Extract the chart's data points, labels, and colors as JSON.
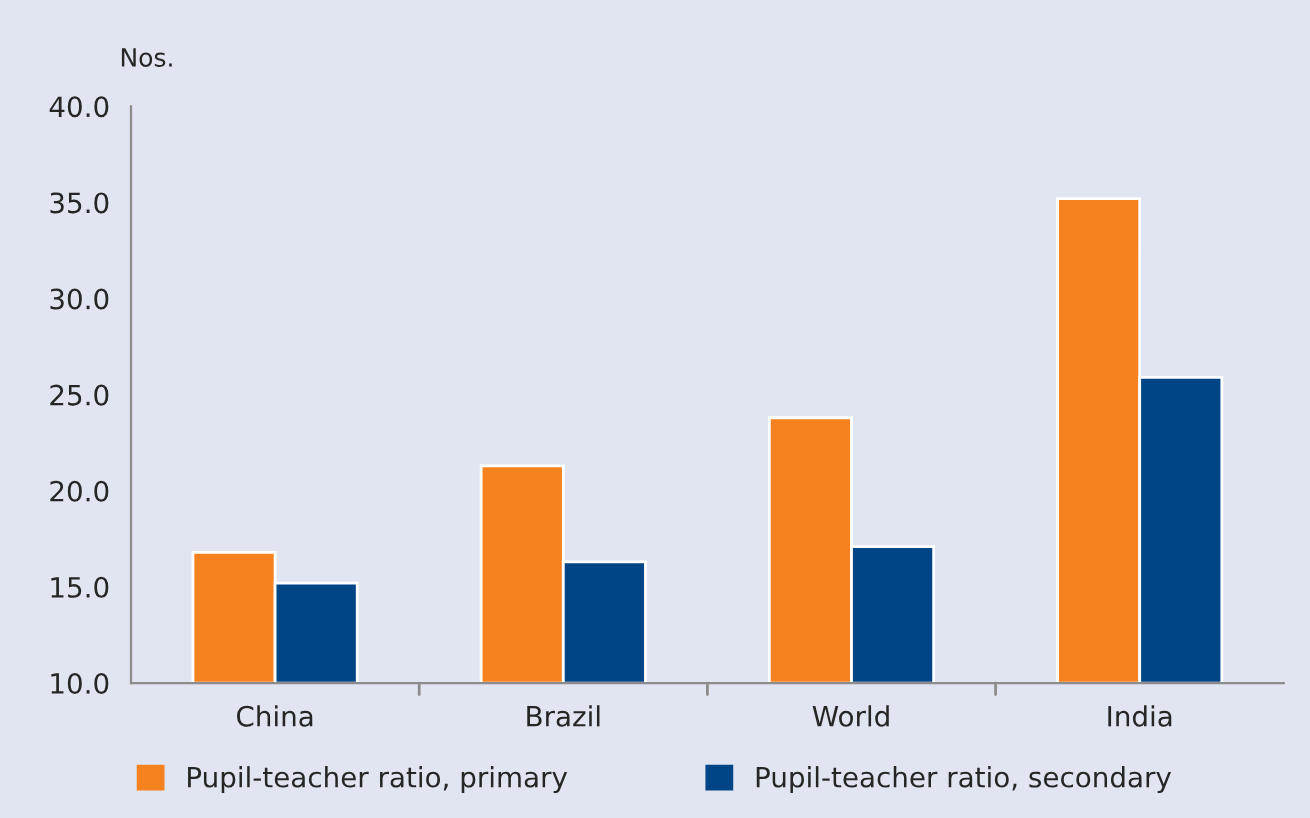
{
  "chart_data": {
    "type": "bar",
    "ylabel": "Nos.",
    "categories": [
      "China",
      "Brazil",
      "World",
      "India"
    ],
    "series": [
      {
        "name": "Pupil-teacher ratio, primary",
        "color": "#f5821f",
        "values": [
          16.8,
          21.3,
          23.8,
          35.2
        ]
      },
      {
        "name": "Pupil-teacher ratio, secondary",
        "color": "#004586",
        "values": [
          15.2,
          16.3,
          17.1,
          25.9
        ]
      }
    ],
    "ylim": [
      10.0,
      40.0
    ],
    "yticks": [
      {
        "value": 10,
        "label": "10.0"
      },
      {
        "value": 15,
        "label": "15.0"
      },
      {
        "value": 20,
        "label": "20.0"
      },
      {
        "value": 25,
        "label": "25.0"
      },
      {
        "value": 30,
        "label": "30.0"
      },
      {
        "value": 35,
        "label": "35.0"
      },
      {
        "value": 40,
        "label": "40.0"
      }
    ],
    "grid": false,
    "legend": "bottom"
  }
}
